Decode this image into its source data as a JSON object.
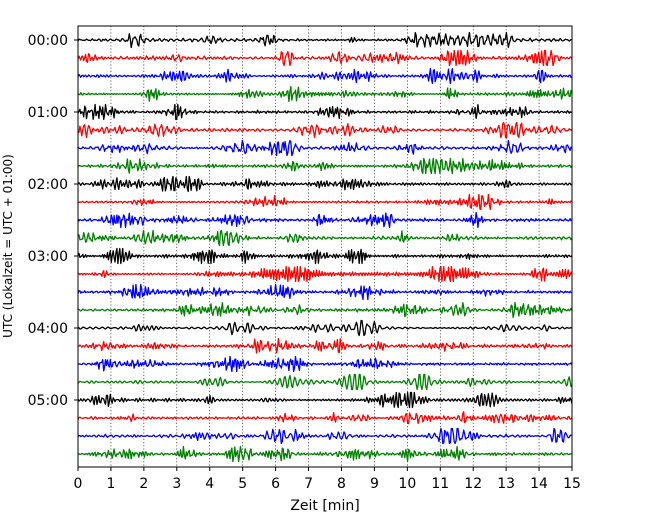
{
  "chart_data": {
    "type": "line",
    "xlabel": "Zeit  [min]",
    "ylabel": "UTC (Lokalzeit = UTC + 01:00)",
    "xlim": [
      0,
      15
    ],
    "xticks": [
      "0",
      "1",
      "2",
      "3",
      "4",
      "5",
      "6",
      "7",
      "8",
      "9",
      "10",
      "11",
      "12",
      "13",
      "14",
      "15"
    ],
    "yticks": [
      "00:00",
      "01:00",
      "02:00",
      "03:00",
      "04:00",
      "05:00"
    ],
    "grid": "vertical dotted at each minute",
    "trace_colors": [
      "#000000",
      "#ff0000",
      "#0000ff",
      "#008000"
    ],
    "trace_minutes_per_line": 15,
    "trace_count": 24,
    "start_time": "00:00",
    "end_time": "06:00"
  }
}
